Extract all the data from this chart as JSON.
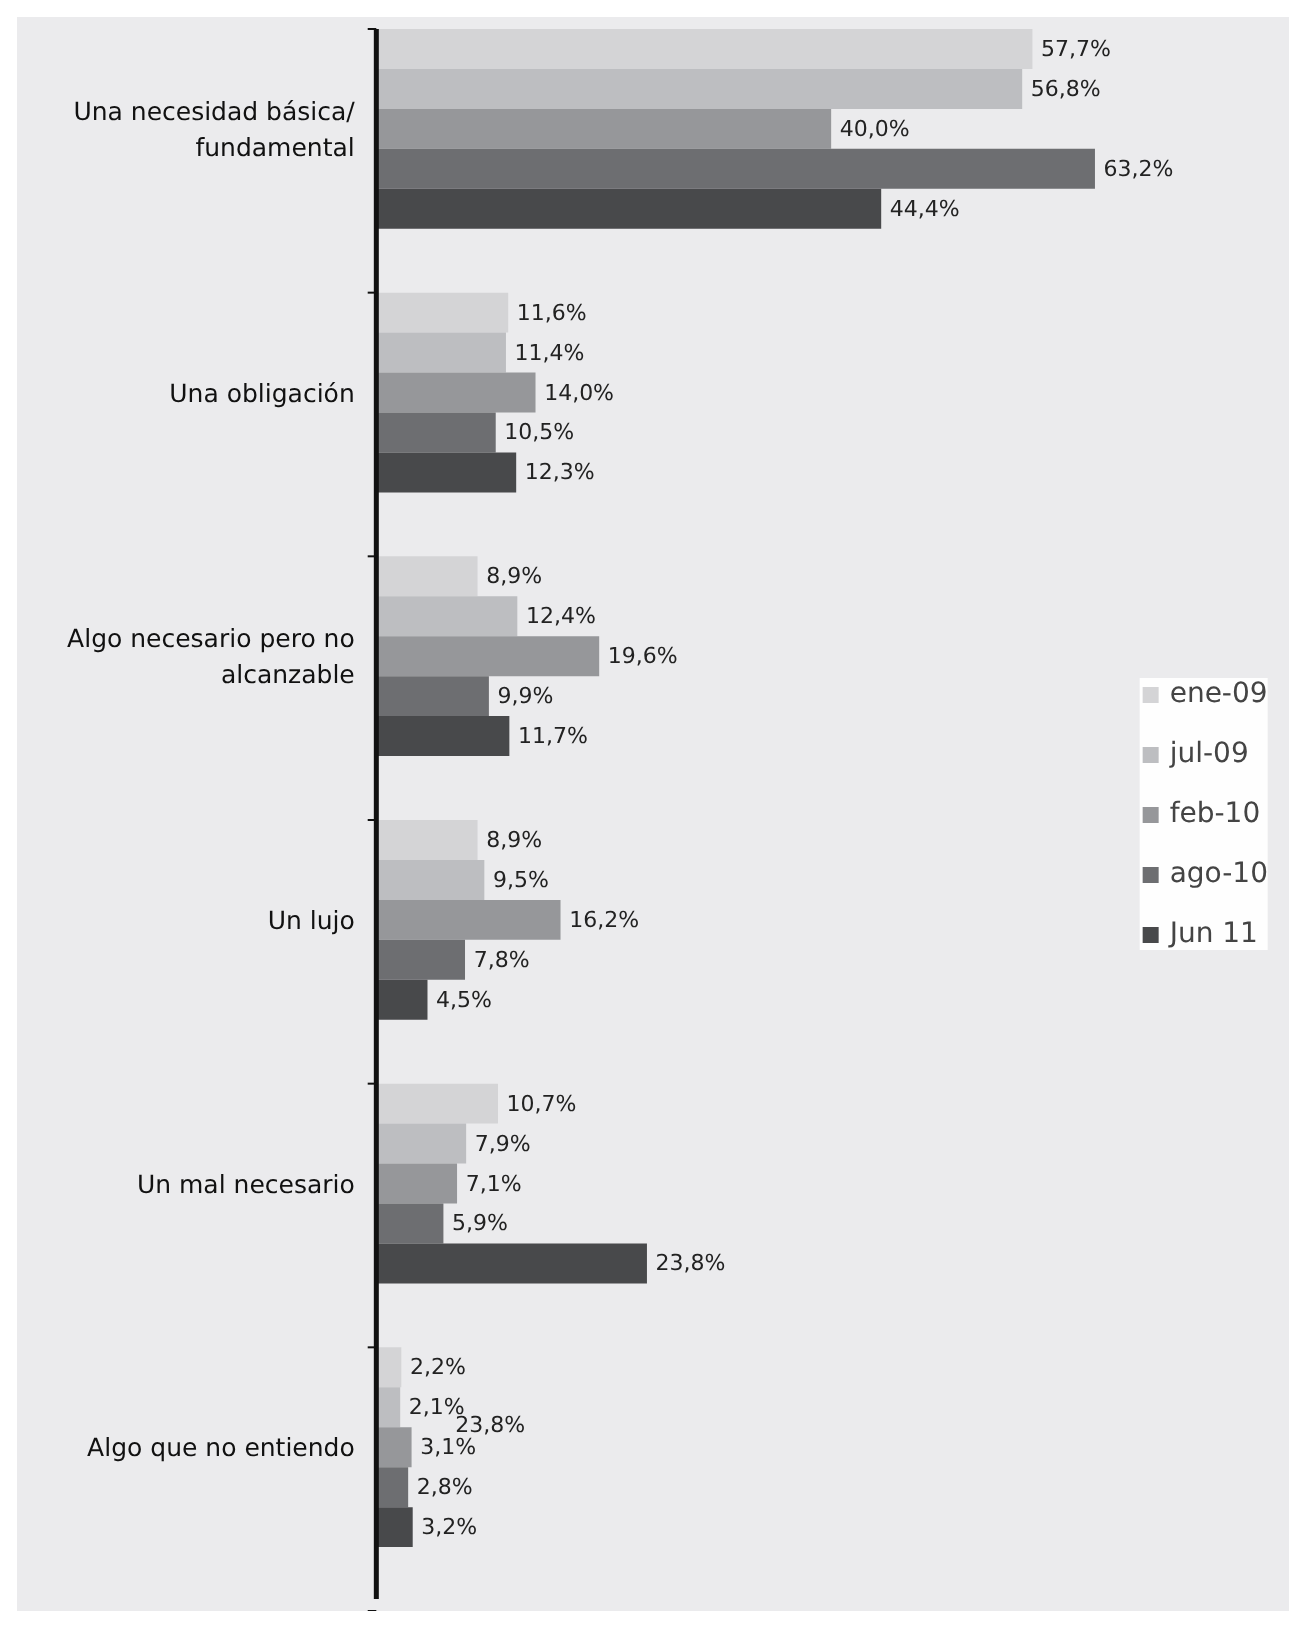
{
  "chart_data": {
    "type": "bar",
    "orientation": "horizontal",
    "legend": "right",
    "categories": [
      "Una necesidad básica/ fundamental",
      "Una obligación",
      "Algo necesario pero no alcanzable",
      "Un lujo",
      "Un mal necesario",
      "Algo que no entiendo"
    ],
    "series": [
      {
        "name": "ene-09",
        "color": "#d4d4d6",
        "values": [
          57.7,
          11.6,
          8.9,
          8.9,
          10.7,
          2.2
        ],
        "value_labels": [
          "57,7%",
          "11,6%",
          "8,9%",
          "8,9%",
          "10,7%",
          "2,2%"
        ]
      },
      {
        "name": "jul-09",
        "color": "#bdbec1",
        "values": [
          56.8,
          11.4,
          12.4,
          9.5,
          7.9,
          2.1
        ],
        "value_labels": [
          "56,8%",
          "11,4%",
          "12,4%",
          "9,5%",
          "7,9%",
          "2,1%"
        ]
      },
      {
        "name": "feb-10",
        "color": "#96979a",
        "values": [
          40.0,
          14.0,
          19.6,
          16.2,
          7.1,
          3.1
        ],
        "value_labels": [
          "40,0%",
          "14,0%",
          "19,6%",
          "16,2%",
          "7,1%",
          "3,1%"
        ]
      },
      {
        "name": "ago-10",
        "color": "#6d6e71",
        "values": [
          63.2,
          10.5,
          9.9,
          7.8,
          5.9,
          2.8
        ],
        "value_labels": [
          "63,2%",
          "10,5%",
          "9,9%",
          "7,8%",
          "5,9%",
          "2,8%"
        ]
      },
      {
        "name": "Jun 11",
        "color": "#48494b",
        "values": [
          44.4,
          12.3,
          11.7,
          4.5,
          23.8,
          3.2
        ],
        "value_labels": [
          "44,4%",
          "12,3%",
          "11,7%",
          "4,5%",
          "23,8%",
          "3,2%"
        ]
      }
    ],
    "annotations": [
      "23,8%"
    ]
  }
}
